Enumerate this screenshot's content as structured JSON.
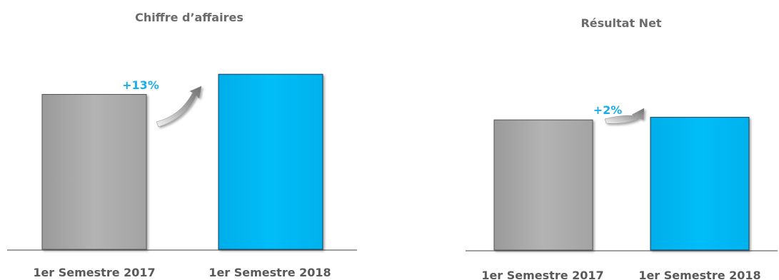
{
  "chart_data": [
    {
      "type": "bar",
      "title": "Chiffre d’affaires",
      "categories": [
        "1er Semestre 2017",
        "1er Semestre 2018"
      ],
      "values": [
        100,
        113
      ],
      "ylim": [
        0,
        120
      ],
      "grid": false,
      "annotation": "+13%",
      "colors": [
        "#a8a8a8",
        "#00b7f3"
      ]
    },
    {
      "type": "bar",
      "title": "Résultat Net",
      "categories": [
        "1er Semestre 2017",
        "1er Semestre 2018"
      ],
      "values": [
        100,
        102
      ],
      "ylim": [
        0,
        110
      ],
      "grid": false,
      "annotation": "+2%",
      "colors": [
        "#a8a8a8",
        "#00b7f3"
      ]
    }
  ]
}
